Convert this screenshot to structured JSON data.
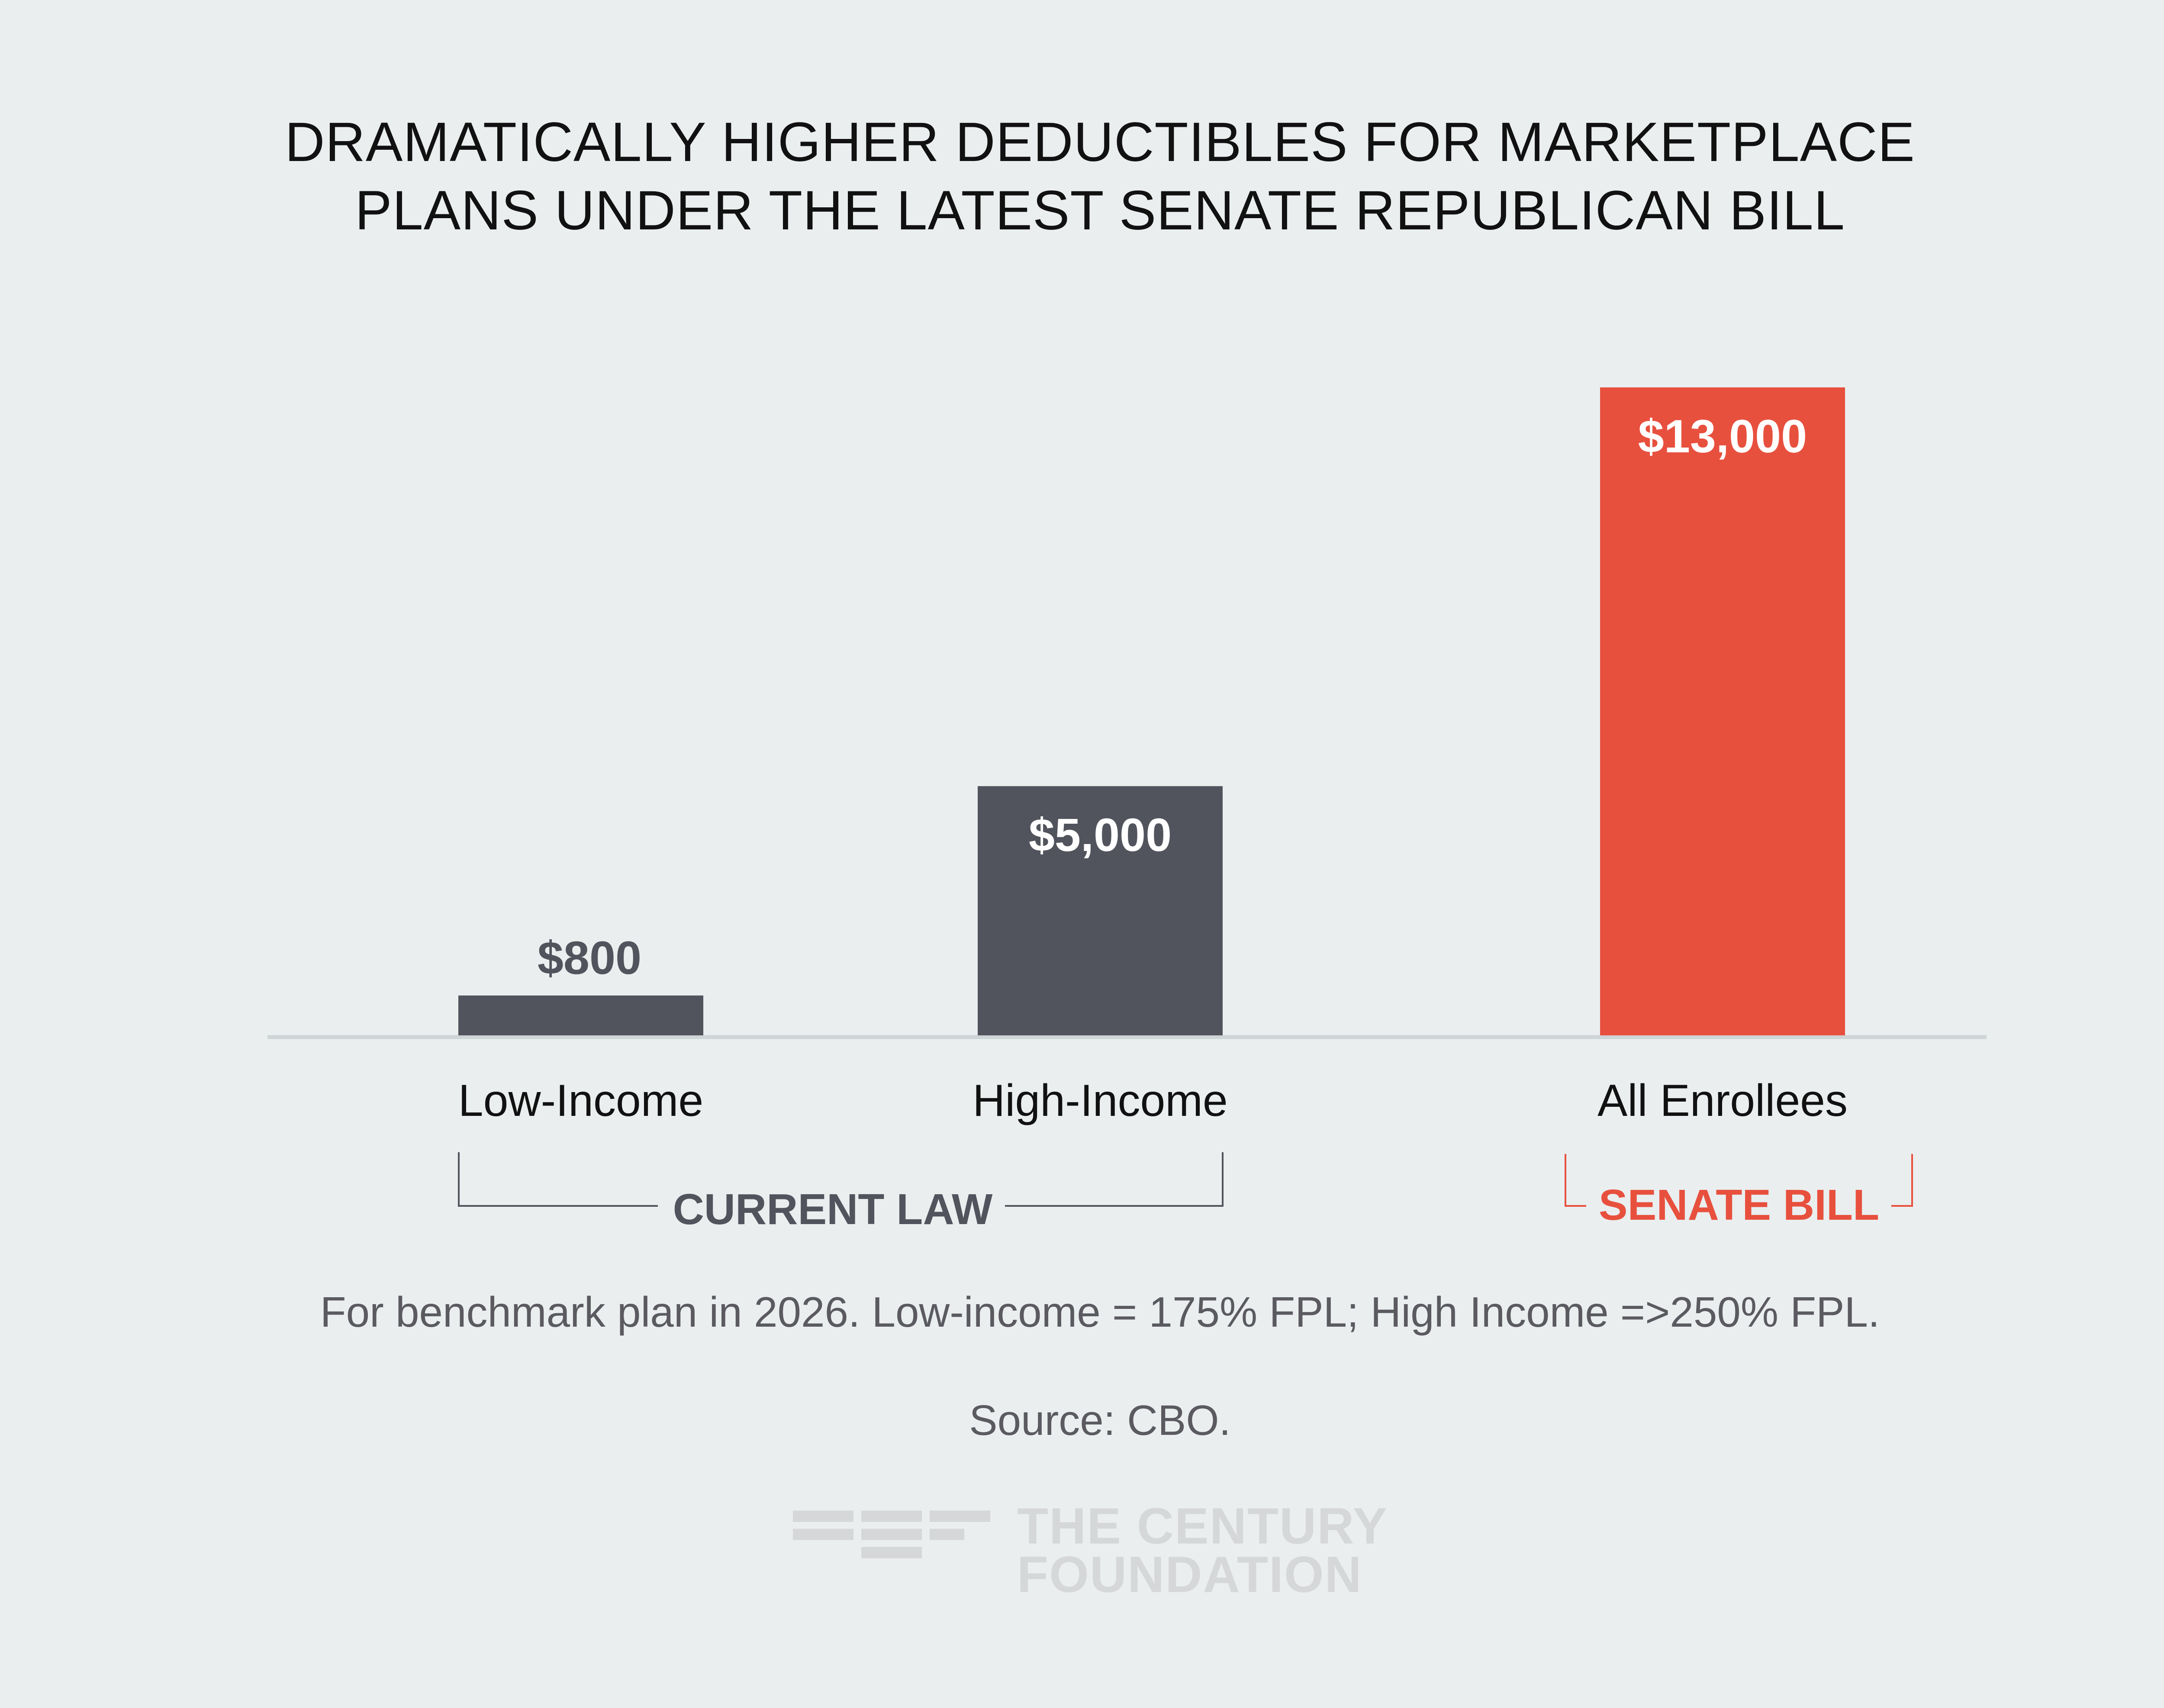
{
  "title": {
    "line1": "DRAMATICALLY HIGHER DEDUCTIBLES FOR MARKETPLACE",
    "line2": "PLANS UNDER THE LATEST SENATE REPUBLICAN BILL"
  },
  "chart_data": {
    "type": "bar",
    "categories": [
      "Low-Income",
      "High-Income",
      "All Enrollees"
    ],
    "values": [
      800,
      5000,
      13000
    ],
    "value_labels": [
      "$800",
      "$5,000",
      "$13,000"
    ],
    "groups": [
      {
        "label": "CURRENT LAW",
        "categories": [
          "Low-Income",
          "High-Income"
        ]
      },
      {
        "label": "SENATE BILL",
        "categories": [
          "All Enrollees"
        ]
      }
    ],
    "colors": {
      "current_law": "#52545d",
      "senate_bill": "#e8503e",
      "baseline": "#cfd4d6",
      "bracket_current": "#52545d",
      "bracket_senate": "#e8503e"
    },
    "ylim": [
      0,
      13000
    ],
    "grid": false
  },
  "notes": {
    "main": "For benchmark plan in 2026.  Low-income = 175% FPL; High Income =>250% FPL.",
    "source": "Source: CBO."
  },
  "logo": {
    "line1": "THE CENTURY",
    "line2": "FOUNDATION"
  }
}
